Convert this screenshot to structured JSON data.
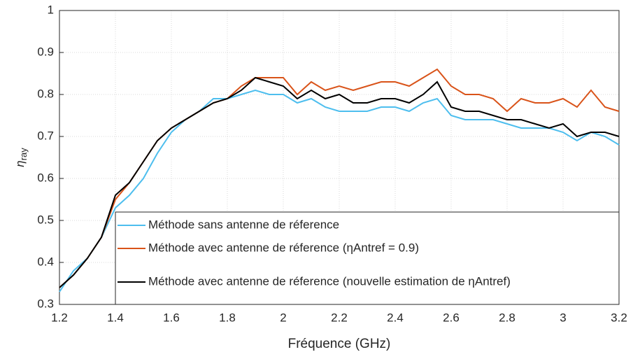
{
  "chart_data": {
    "type": "line",
    "xlabel": "Fréquence (GHz)",
    "ylabel": {
      "symbol": "η",
      "sub": "ray"
    },
    "x": [
      1.2,
      1.25,
      1.3,
      1.35,
      1.4,
      1.45,
      1.5,
      1.55,
      1.6,
      1.65,
      1.7,
      1.75,
      1.8,
      1.85,
      1.9,
      1.95,
      2.0,
      2.05,
      2.1,
      2.15,
      2.2,
      2.25,
      2.3,
      2.35,
      2.4,
      2.45,
      2.5,
      2.55,
      2.6,
      2.65,
      2.7,
      2.75,
      2.8,
      2.85,
      2.9,
      2.95,
      3.0,
      3.05,
      3.1,
      3.15,
      3.2
    ],
    "series": [
      {
        "name": "Méthode sans antenne de réference",
        "color": "#4dbeee",
        "values": [
          0.33,
          0.38,
          0.41,
          0.46,
          0.53,
          0.56,
          0.6,
          0.66,
          0.71,
          0.74,
          0.76,
          0.79,
          0.79,
          0.8,
          0.81,
          0.8,
          0.8,
          0.78,
          0.79,
          0.77,
          0.76,
          0.76,
          0.76,
          0.77,
          0.77,
          0.76,
          0.78,
          0.79,
          0.75,
          0.74,
          0.74,
          0.74,
          0.73,
          0.72,
          0.72,
          0.72,
          0.71,
          0.69,
          0.71,
          0.7,
          0.68
        ]
      },
      {
        "name": "Méthode avec antenne de réference (ηAntref = 0.9)",
        "color": "#d95319",
        "values": [
          0.34,
          0.37,
          0.41,
          0.46,
          0.55,
          0.59,
          0.64,
          0.69,
          0.72,
          0.74,
          0.76,
          0.78,
          0.79,
          0.82,
          0.84,
          0.84,
          0.84,
          0.8,
          0.83,
          0.81,
          0.82,
          0.81,
          0.82,
          0.83,
          0.83,
          0.82,
          0.84,
          0.86,
          0.82,
          0.8,
          0.8,
          0.79,
          0.76,
          0.79,
          0.78,
          0.78,
          0.79,
          0.77,
          0.81,
          0.77,
          0.76
        ]
      },
      {
        "name": "Méthode avec antenne de réference (nouvelle estimation de ηAntref)",
        "color": "#000000",
        "values": [
          0.34,
          0.37,
          0.41,
          0.46,
          0.56,
          0.59,
          0.64,
          0.69,
          0.72,
          0.74,
          0.76,
          0.78,
          0.79,
          0.81,
          0.84,
          0.83,
          0.82,
          0.79,
          0.81,
          0.79,
          0.8,
          0.78,
          0.78,
          0.79,
          0.79,
          0.78,
          0.8,
          0.83,
          0.77,
          0.76,
          0.76,
          0.75,
          0.74,
          0.74,
          0.73,
          0.72,
          0.73,
          0.7,
          0.71,
          0.71,
          0.7
        ]
      }
    ],
    "xlim": [
      1.2,
      3.2
    ],
    "xticks": [
      1.2,
      1.4,
      1.6,
      1.8,
      2,
      2.2,
      2.4,
      2.6,
      2.8,
      3,
      3.2
    ],
    "ylim": [
      0.3,
      1
    ],
    "yticks": [
      0.3,
      0.4,
      0.5,
      0.6,
      0.7,
      0.8,
      0.9,
      1
    ],
    "grid": true,
    "legend": "lower right"
  }
}
